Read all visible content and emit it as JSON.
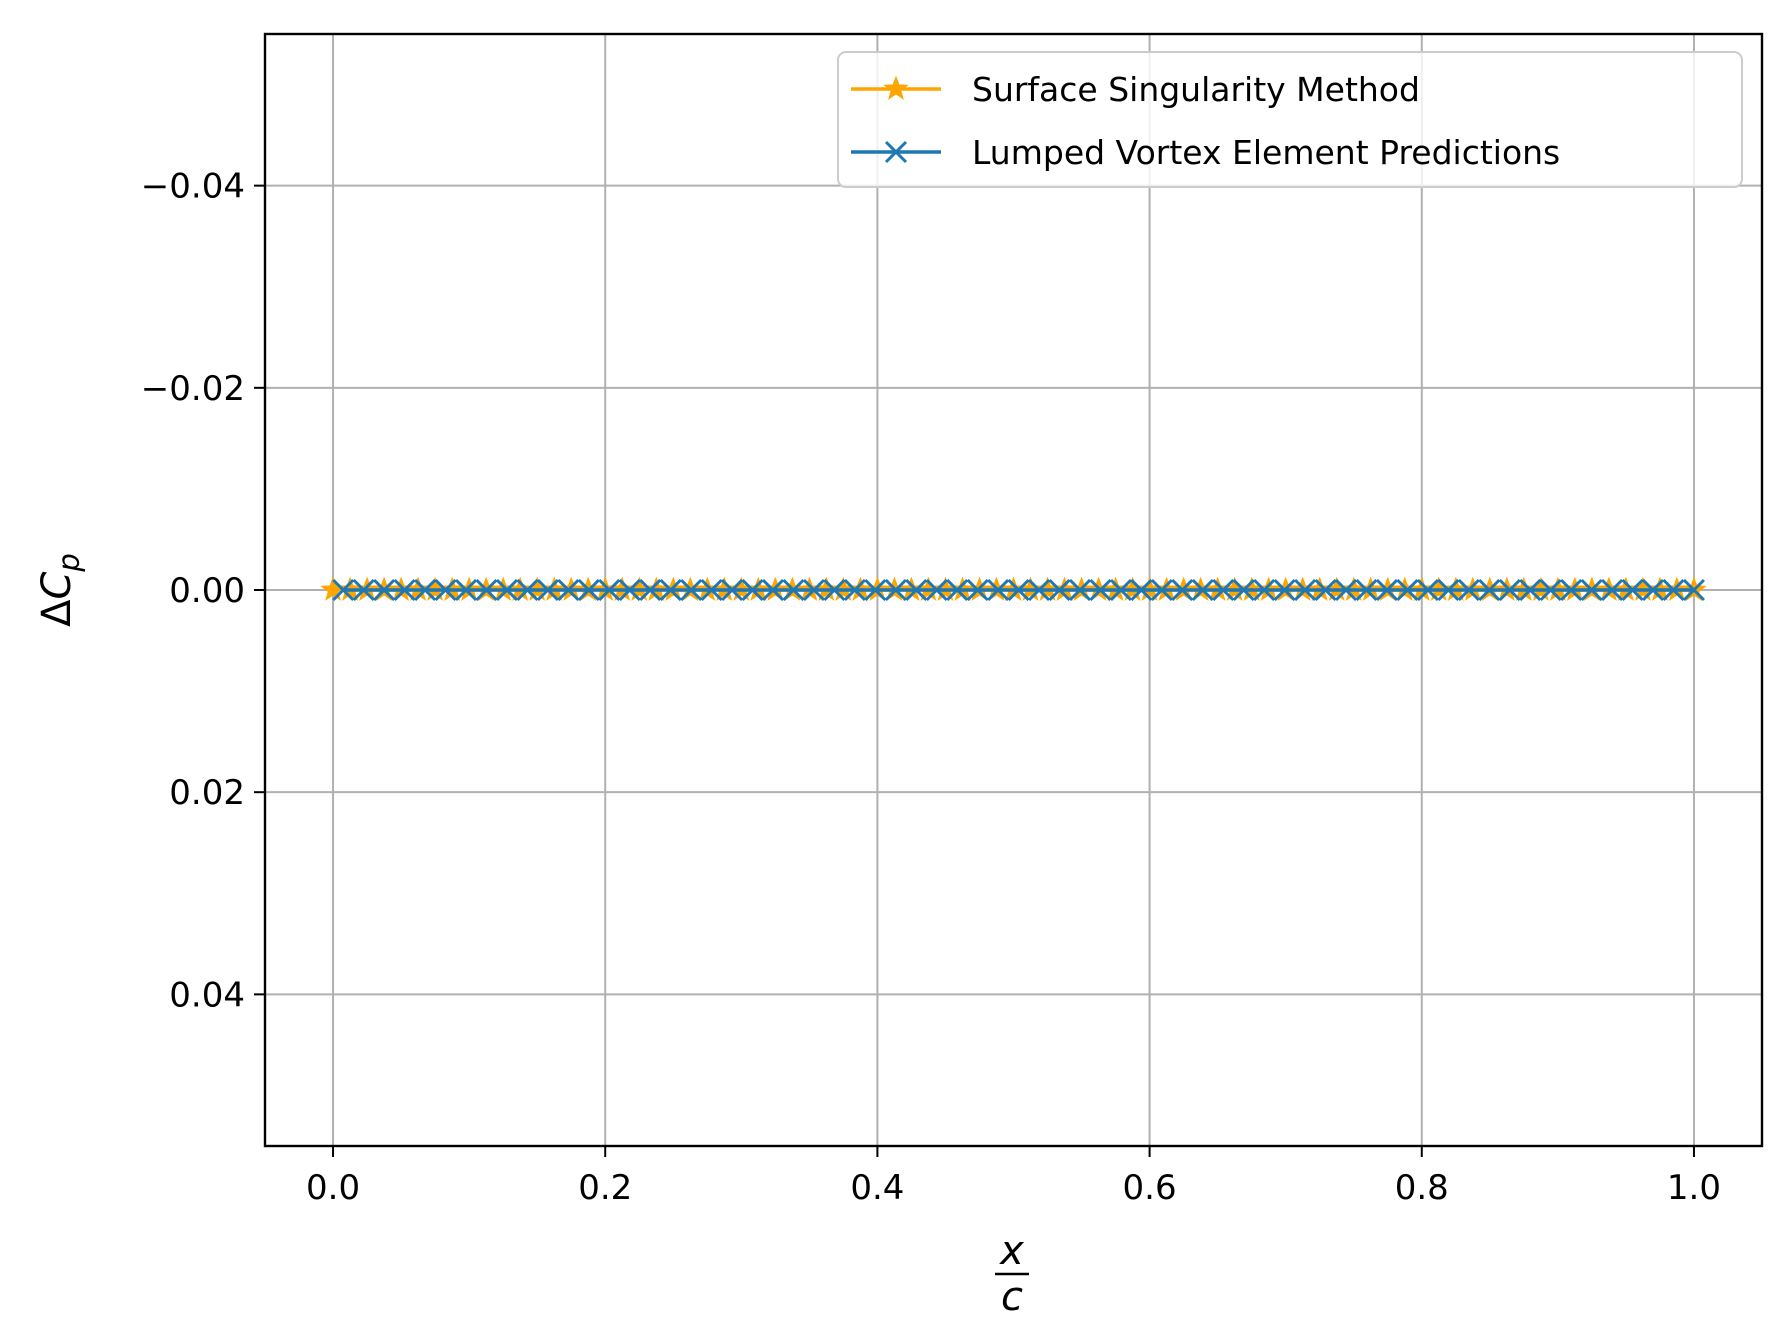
{
  "chart_data": {
    "type": "line",
    "xlabel": {
      "numerator": "x",
      "denominator": "c"
    },
    "ylabel": {
      "delta": "Δ",
      "symbol": "C",
      "subscript": "p"
    },
    "xlim": [
      -0.05,
      1.05
    ],
    "ylim": [
      0.055,
      -0.055
    ],
    "y_inverted": true,
    "grid": true,
    "legend_position": "top-right",
    "xticks": [
      {
        "value": 0.0,
        "label": "0.0"
      },
      {
        "value": 0.2,
        "label": "0.2"
      },
      {
        "value": 0.4,
        "label": "0.4"
      },
      {
        "value": 0.6,
        "label": "0.6"
      },
      {
        "value": 0.8,
        "label": "0.8"
      },
      {
        "value": 1.0,
        "label": "1.0"
      }
    ],
    "yticks": [
      {
        "value": -0.04,
        "label": "−0.04"
      },
      {
        "value": -0.02,
        "label": "−0.02"
      },
      {
        "value": 0.0,
        "label": "0.00"
      },
      {
        "value": 0.02,
        "label": "0.02"
      },
      {
        "value": 0.04,
        "label": "0.04"
      }
    ],
    "series": [
      {
        "name": "Surface Singularity Method",
        "color": "#ffa500",
        "marker": "star",
        "x_range": [
          0.0,
          1.0
        ],
        "point_count": 81,
        "y_constant": 0.0
      },
      {
        "name": "Lumped Vortex Element Predictions",
        "color": "#1f77b4",
        "marker": "x",
        "x_range": [
          0.0075,
          1.0
        ],
        "point_count": 67,
        "y_constant": 0.0
      }
    ]
  }
}
